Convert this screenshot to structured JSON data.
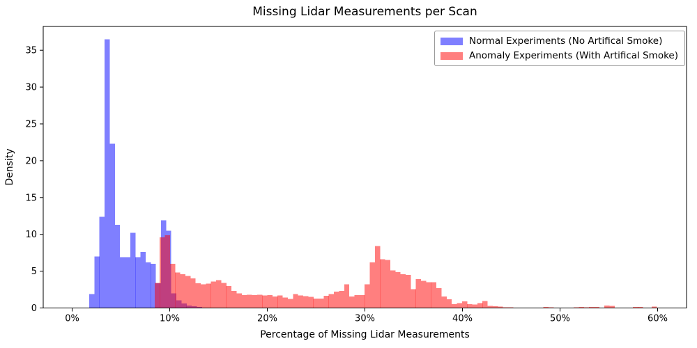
{
  "title": "Missing Lidar Measurements per Scan",
  "axes": {
    "xlabel": "Percentage of Missing Lidar Measurements",
    "ylabel": "Density",
    "x_ticks": [
      {
        "value": 0,
        "label": "0%"
      },
      {
        "value": 10,
        "label": "10%"
      },
      {
        "value": 20,
        "label": "20%"
      },
      {
        "value": 30,
        "label": "30%"
      },
      {
        "value": 40,
        "label": "40%"
      },
      {
        "value": 50,
        "label": "50%"
      },
      {
        "value": 60,
        "label": "60%"
      }
    ],
    "y_ticks": [
      0,
      5,
      10,
      15,
      20,
      25,
      30,
      35
    ]
  },
  "legend": [
    {
      "label": "Normal Experiments (No Artifical Smoke)",
      "swatch_rgba": "rgba(0,0,255,0.5)"
    },
    {
      "label": "Anomaly Experiments (With Artifical Smoke)",
      "swatch_rgba": "rgba(255,0,0,0.5)"
    }
  ],
  "colors": {
    "normal_fill": "#0000ff",
    "anomaly_fill": "#ff0000",
    "fill_opacity": 0.5,
    "blended_normal_on_white": "#7f7fff",
    "blended_anomaly_on_white": "#ff7f7f",
    "blended_overlap": "#bf3f7f",
    "spine": "#000000",
    "background": "#ffffff"
  },
  "chart_data": {
    "type": "bar",
    "subtype": "overlapping-histogram",
    "title": "Missing Lidar Measurements per Scan",
    "xlabel": "Percentage of Missing Lidar Measurements",
    "ylabel": "Density",
    "xlim": [
      -3,
      63
    ],
    "ylim": [
      0,
      38.2
    ],
    "grid": false,
    "legend_position": "upper right",
    "bin_width_pct": 0.525,
    "x_unit": "percent",
    "series": [
      {
        "name": "Normal Experiments (No Artifical Smoke)",
        "color": "#0000ff",
        "opacity": 0.5,
        "bars": [
          [
            1.75,
            1.9
          ],
          [
            2.275,
            7.0
          ],
          [
            2.8,
            12.4
          ],
          [
            3.325,
            36.5
          ],
          [
            3.85,
            22.3
          ],
          [
            4.375,
            11.3
          ],
          [
            4.9,
            6.9
          ],
          [
            5.425,
            6.9
          ],
          [
            5.95,
            10.2
          ],
          [
            6.475,
            6.9
          ],
          [
            7.0,
            7.6
          ],
          [
            7.525,
            6.2
          ],
          [
            8.05,
            6.0
          ],
          [
            8.575,
            3.35
          ],
          [
            9.1,
            11.9
          ],
          [
            9.625,
            10.5
          ],
          [
            10.15,
            2.0
          ],
          [
            10.675,
            1.05
          ],
          [
            11.2,
            0.6
          ],
          [
            11.725,
            0.35
          ],
          [
            12.25,
            0.25
          ],
          [
            12.775,
            0.15
          ]
        ]
      },
      {
        "name": "Anomaly Experiments (With Artifical Smoke)",
        "color": "#ff0000",
        "opacity": 0.5,
        "bars": [
          [
            8.45,
            3.4
          ],
          [
            8.975,
            9.6
          ],
          [
            9.5,
            9.9
          ],
          [
            10.025,
            6.0
          ],
          [
            10.55,
            4.8
          ],
          [
            11.075,
            4.6
          ],
          [
            11.6,
            4.35
          ],
          [
            12.125,
            4.0
          ],
          [
            12.65,
            3.35
          ],
          [
            13.175,
            3.2
          ],
          [
            13.7,
            3.3
          ],
          [
            14.225,
            3.6
          ],
          [
            14.75,
            3.8
          ],
          [
            15.275,
            3.4
          ],
          [
            15.8,
            3.0
          ],
          [
            16.325,
            2.3
          ],
          [
            16.85,
            2.0
          ],
          [
            17.375,
            1.75
          ],
          [
            17.9,
            1.8
          ],
          [
            18.425,
            1.75
          ],
          [
            18.95,
            1.8
          ],
          [
            19.475,
            1.7
          ],
          [
            20.0,
            1.75
          ],
          [
            20.525,
            1.55
          ],
          [
            21.05,
            1.7
          ],
          [
            21.575,
            1.4
          ],
          [
            22.1,
            1.25
          ],
          [
            22.625,
            1.9
          ],
          [
            23.15,
            1.7
          ],
          [
            23.675,
            1.6
          ],
          [
            24.2,
            1.5
          ],
          [
            24.725,
            1.3
          ],
          [
            25.25,
            1.3
          ],
          [
            25.775,
            1.65
          ],
          [
            26.3,
            1.9
          ],
          [
            26.825,
            2.2
          ],
          [
            27.35,
            2.3
          ],
          [
            27.875,
            3.2
          ],
          [
            28.4,
            1.55
          ],
          [
            28.925,
            1.75
          ],
          [
            29.45,
            1.75
          ],
          [
            29.975,
            3.2
          ],
          [
            30.5,
            6.2
          ],
          [
            31.025,
            8.4
          ],
          [
            31.55,
            6.6
          ],
          [
            32.075,
            6.5
          ],
          [
            32.6,
            5.1
          ],
          [
            33.125,
            4.85
          ],
          [
            33.65,
            4.6
          ],
          [
            34.175,
            4.5
          ],
          [
            34.7,
            2.55
          ],
          [
            35.225,
            3.9
          ],
          [
            35.75,
            3.7
          ],
          [
            36.275,
            3.5
          ],
          [
            36.8,
            3.5
          ],
          [
            37.325,
            2.7
          ],
          [
            37.85,
            1.55
          ],
          [
            38.375,
            1.2
          ],
          [
            38.9,
            0.5
          ],
          [
            39.425,
            0.65
          ],
          [
            39.95,
            0.9
          ],
          [
            40.475,
            0.5
          ],
          [
            41.0,
            0.45
          ],
          [
            41.525,
            0.65
          ],
          [
            42.05,
            0.95
          ],
          [
            42.575,
            0.3
          ],
          [
            43.1,
            0.25
          ],
          [
            43.625,
            0.2
          ],
          [
            44.15,
            0.1
          ],
          [
            44.675,
            0.08
          ],
          [
            48.3,
            0.15
          ],
          [
            48.825,
            0.1
          ],
          [
            51.4,
            0.1
          ],
          [
            51.925,
            0.12
          ],
          [
            52.45,
            0.1
          ],
          [
            52.975,
            0.15
          ],
          [
            53.5,
            0.12
          ],
          [
            54.55,
            0.35
          ],
          [
            55.075,
            0.3
          ],
          [
            57.45,
            0.15
          ],
          [
            57.975,
            0.12
          ],
          [
            59.4,
            0.2
          ]
        ]
      }
    ]
  }
}
